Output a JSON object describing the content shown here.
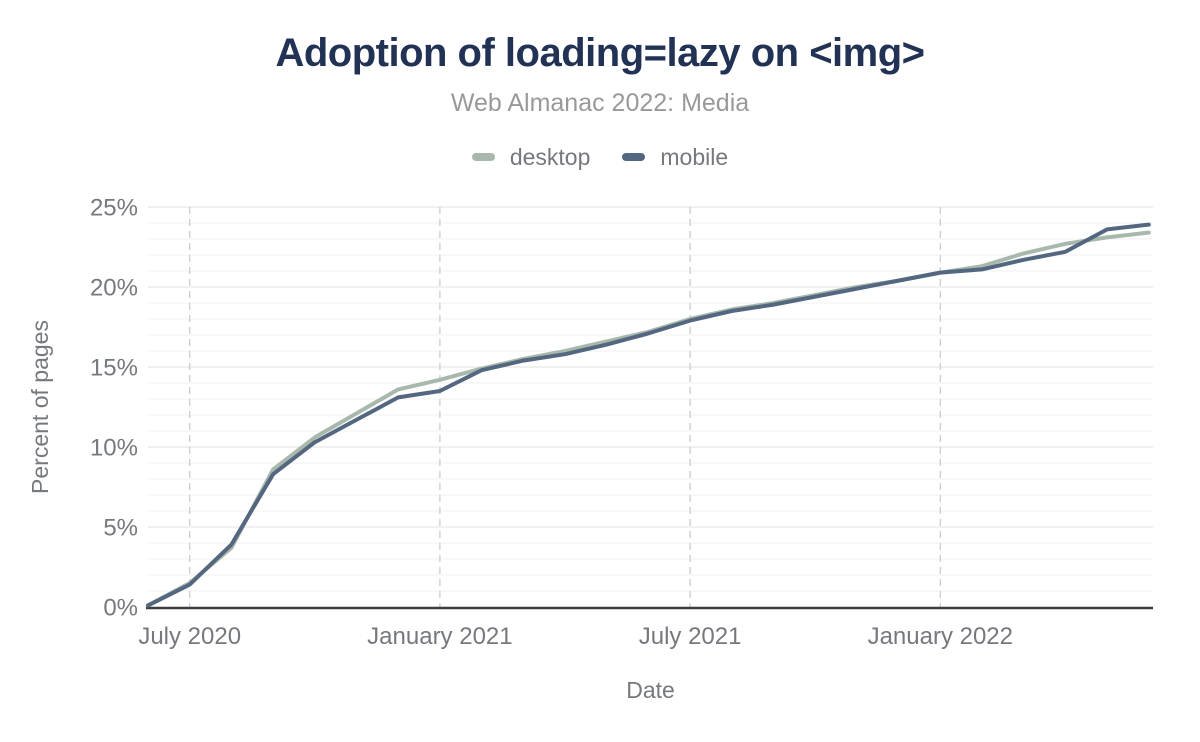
{
  "colors": {
    "background": "#ffffff",
    "title": "#213255",
    "subtitle": "#97999b",
    "axis_text": "#75797d",
    "axis_line": "#3d3d3d",
    "grid_minor": "#f2f2f2",
    "grid_major": "#e2e2e2",
    "grid_vertical": "#cccccc"
  },
  "chart_data": {
    "type": "line",
    "title": "Adoption of loading=lazy on <img>",
    "subtitle": "Web Almanac 2022: Media",
    "xlabel": "Date",
    "ylabel": "Percent of pages",
    "ylim": [
      0,
      25
    ],
    "y_ticks": [
      {
        "label": "0%",
        "value": 0
      },
      {
        "label": "5%",
        "value": 5
      },
      {
        "label": "10%",
        "value": 10
      },
      {
        "label": "15%",
        "value": 15
      },
      {
        "label": "20%",
        "value": 20
      },
      {
        "label": "25%",
        "value": 25
      }
    ],
    "minor_grid_step": 1,
    "grid": "on",
    "legend_position": "top",
    "x": [
      "2020-06",
      "2020-07",
      "2020-08",
      "2020-09",
      "2020-10",
      "2020-11",
      "2020-12",
      "2021-01",
      "2021-02",
      "2021-03",
      "2021-04",
      "2021-05",
      "2021-06",
      "2021-07",
      "2021-08",
      "2021-09",
      "2021-10",
      "2021-11",
      "2021-12",
      "2022-01",
      "2022-02",
      "2022-03",
      "2022-04",
      "2022-05",
      "2022-06"
    ],
    "x_ticks": [
      {
        "label": "July 2020",
        "month_index": 1
      },
      {
        "label": "January 2021",
        "month_index": 7
      },
      {
        "label": "July 2021",
        "month_index": 13
      },
      {
        "label": "January 2022",
        "month_index": 19
      }
    ],
    "series": [
      {
        "name": "desktop",
        "color": "#a9b8ac",
        "values": [
          0.1,
          1.5,
          3.7,
          8.6,
          10.6,
          12.1,
          13.6,
          14.2,
          14.9,
          15.5,
          16.0,
          16.6,
          17.2,
          18.0,
          18.6,
          19.0,
          19.5,
          20.0,
          20.4,
          20.9,
          21.3,
          22.1,
          22.7,
          23.1,
          23.4
        ]
      },
      {
        "name": "mobile",
        "color": "#546780",
        "values": [
          0.1,
          1.4,
          3.9,
          8.3,
          10.3,
          11.7,
          13.1,
          13.5,
          14.8,
          15.4,
          15.8,
          16.4,
          17.1,
          17.9,
          18.5,
          18.9,
          19.4,
          19.9,
          20.4,
          20.9,
          21.1,
          21.7,
          22.2,
          23.6,
          23.9
        ]
      }
    ]
  }
}
